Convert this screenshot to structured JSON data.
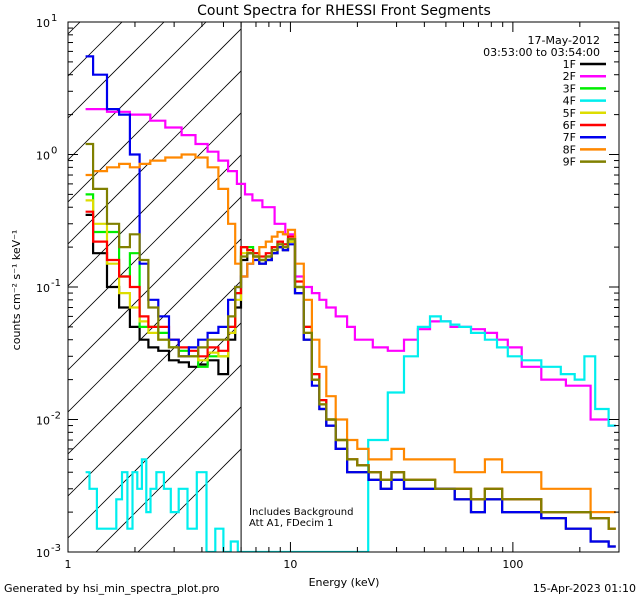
{
  "chart_data": {
    "type": "line",
    "title": "Count Spectra for RHESSI Front Segments",
    "xlabel": "Energy (keV)",
    "ylabel": "counts cm⁻² s⁻¹ keV⁻¹",
    "xscale": "log",
    "yscale": "log",
    "xlim": [
      1,
      300
    ],
    "ylim": [
      0.001,
      10
    ],
    "x_ticks": [
      {
        "value": 1,
        "label": "1"
      },
      {
        "value": 10,
        "label": "10"
      },
      {
        "value": 100,
        "label": "100"
      }
    ],
    "y_ticks": [
      {
        "value": 0.001,
        "base": "10",
        "exp": "-3"
      },
      {
        "value": 0.01,
        "base": "10",
        "exp": "-2"
      },
      {
        "value": 0.1,
        "base": "10",
        "exp": "-1"
      },
      {
        "value": 1,
        "base": "10",
        "exp": "0"
      },
      {
        "value": 10,
        "base": "10",
        "exp": "1"
      }
    ],
    "attenuator_boundary_kev": 6,
    "legend": {
      "date": "17-May-2012",
      "time_range": "03:53:00 to 03:54:00",
      "placement": "top-right"
    },
    "annotations": [
      "Includes Background",
      "Att A1, FDecim 1"
    ],
    "series": [
      {
        "name": "1F",
        "color": "#000000",
        "x": [
          1.2,
          1.4,
          1.6,
          1.8,
          2.0,
          2.2,
          2.4,
          2.7,
          3.0,
          3.3,
          3.7,
          4.0,
          4.5,
          5.0,
          5.5,
          5.8,
          6.2,
          6.6,
          7.0,
          7.5,
          8.0,
          8.5,
          9.0,
          9.5,
          10,
          11,
          12,
          13,
          14,
          15,
          17,
          19,
          21,
          24,
          27,
          30,
          35,
          40,
          50,
          60,
          70,
          80,
          100,
          120,
          150,
          200,
          250,
          290
        ],
        "y": [
          0.35,
          0.18,
          0.1,
          0.07,
          0.05,
          0.04,
          0.035,
          0.033,
          0.028,
          0.027,
          0.025,
          0.026,
          0.028,
          0.022,
          0.04,
          0.07,
          0.16,
          0.18,
          0.17,
          0.15,
          0.16,
          0.18,
          0.2,
          0.19,
          0.22,
          0.09,
          0.04,
          0.02,
          0.012,
          0.009,
          0.006,
          0.004,
          0.004,
          0.0035,
          0.003,
          0.0035,
          0.003,
          0.003,
          0.003,
          0.0025,
          0.002,
          0.0025,
          0.002,
          0.002,
          0.0018,
          0.0015,
          0.0012,
          0.0011
        ]
      },
      {
        "name": "2F",
        "color": "#ff00ff",
        "x": [
          1.2,
          1.4,
          1.6,
          1.8,
          2.0,
          2.2,
          2.5,
          3.0,
          3.5,
          4.0,
          4.5,
          5.0,
          5.5,
          6.0,
          6.5,
          7.0,
          8.0,
          9.0,
          10,
          11,
          12,
          13,
          14,
          15,
          17,
          19,
          20,
          22,
          25,
          30,
          35,
          40,
          45,
          50,
          55,
          60,
          70,
          80,
          90,
          100,
          120,
          150,
          200,
          250,
          290
        ],
        "y": [
          2.2,
          2.2,
          2.1,
          2.1,
          2.0,
          2.0,
          1.8,
          1.6,
          1.4,
          1.2,
          1.05,
          0.9,
          0.75,
          0.6,
          0.5,
          0.45,
          0.4,
          0.3,
          0.25,
          0.12,
          0.1,
          0.09,
          0.08,
          0.07,
          0.06,
          0.05,
          0.04,
          0.04,
          0.035,
          0.033,
          0.04,
          0.048,
          0.055,
          0.055,
          0.05,
          0.05,
          0.048,
          0.045,
          0.04,
          0.035,
          0.025,
          0.02,
          0.018,
          0.01,
          0.009
        ]
      },
      {
        "name": "3F",
        "color": "#00ee00",
        "x": [
          1.2,
          1.4,
          1.6,
          1.8,
          2.0,
          2.2,
          2.4,
          2.7,
          3.0,
          3.3,
          3.7,
          4.0,
          4.5,
          5.0,
          5.5,
          5.8,
          6.2,
          6.6,
          7.0,
          7.5,
          8.0,
          8.5,
          9.0,
          9.5,
          10,
          11,
          12,
          13,
          14,
          15,
          17,
          19,
          21,
          24,
          27,
          30,
          35,
          40,
          50,
          60,
          70,
          80,
          100,
          120,
          150,
          200,
          250,
          290
        ],
        "y": [
          0.5,
          0.26,
          0.26,
          0.12,
          0.18,
          0.05,
          0.05,
          0.045,
          0.035,
          0.033,
          0.03,
          0.025,
          0.03,
          0.03,
          0.05,
          0.09,
          0.2,
          0.2,
          0.18,
          0.16,
          0.17,
          0.2,
          0.22,
          0.21,
          0.23,
          0.1,
          0.05,
          0.022,
          0.014,
          0.01,
          0.007,
          0.005,
          0.0045,
          0.004,
          0.0035,
          0.004,
          0.0035,
          0.0035,
          0.003,
          0.003,
          0.0025,
          0.003,
          0.0025,
          0.0025,
          0.002,
          0.002,
          0.0018,
          0.0015
        ]
      },
      {
        "name": "4F",
        "color": "#00eeee",
        "x": [
          1.2,
          1.3,
          1.4,
          1.5,
          1.6,
          1.7,
          1.8,
          1.9,
          2.0,
          2.1,
          2.2,
          2.3,
          2.4,
          2.6,
          2.8,
          3.0,
          3.3,
          3.6,
          4.0,
          4.4,
          4.8,
          5.2,
          5.6,
          6.0,
          6.5,
          7.0,
          8.0,
          9.0,
          10,
          12,
          15,
          20,
          25,
          30,
          35,
          40,
          45,
          50,
          55,
          60,
          70,
          80,
          90,
          100,
          120,
          150,
          180,
          200,
          220,
          250,
          290
        ],
        "y": [
          0.004,
          0.003,
          0.0015,
          0.0015,
          0.0015,
          0.0025,
          0.004,
          0.0015,
          0.004,
          0.003,
          0.005,
          0.002,
          0.003,
          0.004,
          0.003,
          0.002,
          0.003,
          0.0015,
          0.004,
          0.001,
          0.0015,
          0.001,
          0.0012,
          0.001,
          0.001,
          0.001,
          0.001,
          0.001,
          0.001,
          0.001,
          0.001,
          0.001,
          0.007,
          0.016,
          0.03,
          0.05,
          0.06,
          0.055,
          0.052,
          0.05,
          0.045,
          0.04,
          0.035,
          0.03,
          0.028,
          0.025,
          0.022,
          0.02,
          0.03,
          0.012,
          0.009
        ]
      },
      {
        "name": "5F",
        "color": "#dddd00",
        "x": [
          1.2,
          1.4,
          1.6,
          1.8,
          2.0,
          2.2,
          2.4,
          2.7,
          3.0,
          3.3,
          3.7,
          4.0,
          4.5,
          5.0,
          5.5,
          5.8,
          6.2,
          6.6,
          7.0,
          7.5,
          8.0,
          8.5,
          9.0,
          9.5,
          10,
          11,
          12,
          13,
          14,
          15,
          17,
          19,
          21,
          24,
          27,
          30,
          35,
          40,
          50,
          60,
          70,
          80,
          100,
          120,
          150,
          200,
          250,
          290
        ],
        "y": [
          0.45,
          0.3,
          0.15,
          0.09,
          0.07,
          0.055,
          0.045,
          0.04,
          0.035,
          0.03,
          0.03,
          0.028,
          0.032,
          0.03,
          0.045,
          0.08,
          0.18,
          0.19,
          0.17,
          0.16,
          0.17,
          0.19,
          0.21,
          0.2,
          0.22,
          0.1,
          0.045,
          0.02,
          0.013,
          0.01,
          0.007,
          0.005,
          0.0045,
          0.004,
          0.0035,
          0.004,
          0.0035,
          0.0035,
          0.003,
          0.003,
          0.0025,
          0.003,
          0.0025,
          0.0025,
          0.002,
          0.002,
          0.0018,
          0.0015
        ]
      },
      {
        "name": "6F",
        "color": "#ff0000",
        "x": [
          1.2,
          1.4,
          1.6,
          1.8,
          2.0,
          2.2,
          2.4,
          2.7,
          3.0,
          3.3,
          3.7,
          4.0,
          4.5,
          5.0,
          5.5,
          5.8,
          6.2,
          6.6,
          7.0,
          7.5,
          8.0,
          8.5,
          9.0,
          9.5,
          10,
          11,
          12,
          13,
          14,
          15,
          17,
          19,
          21,
          24,
          27,
          30,
          35,
          40,
          50,
          60,
          70,
          80,
          100,
          120,
          150,
          200,
          250,
          290
        ],
        "y": [
          0.37,
          0.22,
          0.16,
          0.12,
          0.1,
          0.06,
          0.05,
          0.05,
          0.04,
          0.035,
          0.033,
          0.03,
          0.035,
          0.033,
          0.05,
          0.09,
          0.2,
          0.19,
          0.18,
          0.17,
          0.18,
          0.2,
          0.22,
          0.21,
          0.24,
          0.11,
          0.05,
          0.022,
          0.014,
          0.01,
          0.007,
          0.005,
          0.0045,
          0.004,
          0.0035,
          0.004,
          0.0035,
          0.0035,
          0.003,
          0.003,
          0.0025,
          0.003,
          0.0025,
          0.0025,
          0.002,
          0.002,
          0.0018,
          0.0015
        ]
      },
      {
        "name": "7F",
        "color": "#0000ee",
        "x": [
          1.2,
          1.4,
          1.6,
          1.8,
          2.0,
          2.2,
          2.4,
          2.7,
          3.0,
          3.3,
          3.7,
          4.0,
          4.5,
          5.0,
          5.5,
          5.8,
          6.2,
          6.6,
          7.0,
          7.5,
          8.0,
          8.5,
          9.0,
          9.5,
          10,
          11,
          12,
          13,
          14,
          15,
          17,
          19,
          21,
          24,
          27,
          30,
          35,
          40,
          50,
          60,
          70,
          80,
          100,
          120,
          150,
          200,
          250,
          290
        ],
        "y": [
          5.5,
          4.0,
          2.2,
          2.0,
          1.0,
          0.15,
          0.08,
          0.06,
          0.04,
          0.03,
          0.035,
          0.04,
          0.045,
          0.05,
          0.08,
          0.1,
          0.12,
          0.15,
          0.16,
          0.15,
          0.16,
          0.18,
          0.2,
          0.19,
          0.21,
          0.09,
          0.04,
          0.018,
          0.012,
          0.009,
          0.006,
          0.004,
          0.004,
          0.0035,
          0.003,
          0.0035,
          0.003,
          0.003,
          0.003,
          0.0025,
          0.002,
          0.0025,
          0.002,
          0.002,
          0.0018,
          0.0015,
          0.0012,
          0.0011
        ]
      },
      {
        "name": "8F",
        "color": "#ff8800",
        "x": [
          1.2,
          1.4,
          1.6,
          1.8,
          2.0,
          2.2,
          2.5,
          3.0,
          3.5,
          4.0,
          4.5,
          5.0,
          5.5,
          5.8,
          6.2,
          6.6,
          7.0,
          7.5,
          8.0,
          8.5,
          9.0,
          9.5,
          10,
          11,
          12,
          13,
          14,
          15,
          17,
          19,
          21,
          24,
          27,
          30,
          35,
          40,
          50,
          60,
          70,
          80,
          100,
          120,
          150,
          200,
          250,
          290
        ],
        "y": [
          0.7,
          0.75,
          0.8,
          0.85,
          0.8,
          0.85,
          0.9,
          0.95,
          1.0,
          0.95,
          0.8,
          0.55,
          0.3,
          0.15,
          0.12,
          0.15,
          0.17,
          0.2,
          0.22,
          0.24,
          0.26,
          0.25,
          0.27,
          0.15,
          0.08,
          0.04,
          0.025,
          0.015,
          0.01,
          0.007,
          0.006,
          0.005,
          0.005,
          0.006,
          0.005,
          0.005,
          0.005,
          0.004,
          0.004,
          0.005,
          0.004,
          0.004,
          0.003,
          0.003,
          0.002,
          0.002
        ]
      },
      {
        "name": "9F",
        "color": "#808000",
        "x": [
          1.2,
          1.4,
          1.6,
          1.8,
          2.0,
          2.2,
          2.4,
          2.7,
          3.0,
          3.3,
          3.7,
          4.0,
          4.5,
          5.0,
          5.5,
          5.8,
          6.2,
          6.6,
          7.0,
          7.5,
          8.0,
          8.5,
          9.0,
          9.5,
          10,
          11,
          12,
          13,
          14,
          15,
          17,
          19,
          21,
          24,
          27,
          30,
          35,
          40,
          50,
          60,
          70,
          80,
          100,
          120,
          150,
          200,
          250,
          290
        ],
        "y": [
          1.2,
          0.55,
          0.3,
          0.2,
          0.25,
          0.16,
          0.07,
          0.04,
          0.035,
          0.03,
          0.03,
          0.035,
          0.04,
          0.04,
          0.06,
          0.1,
          0.17,
          0.18,
          0.17,
          0.16,
          0.17,
          0.19,
          0.21,
          0.2,
          0.23,
          0.1,
          0.045,
          0.02,
          0.013,
          0.01,
          0.007,
          0.005,
          0.0045,
          0.004,
          0.0035,
          0.004,
          0.0035,
          0.0035,
          0.003,
          0.003,
          0.0025,
          0.003,
          0.0025,
          0.0025,
          0.002,
          0.002,
          0.0018,
          0.0015
        ]
      }
    ]
  },
  "footer": {
    "generated_by": "Generated by hsi_min_spectra_plot.pro",
    "timestamp": "15-Apr-2023 01:10"
  }
}
